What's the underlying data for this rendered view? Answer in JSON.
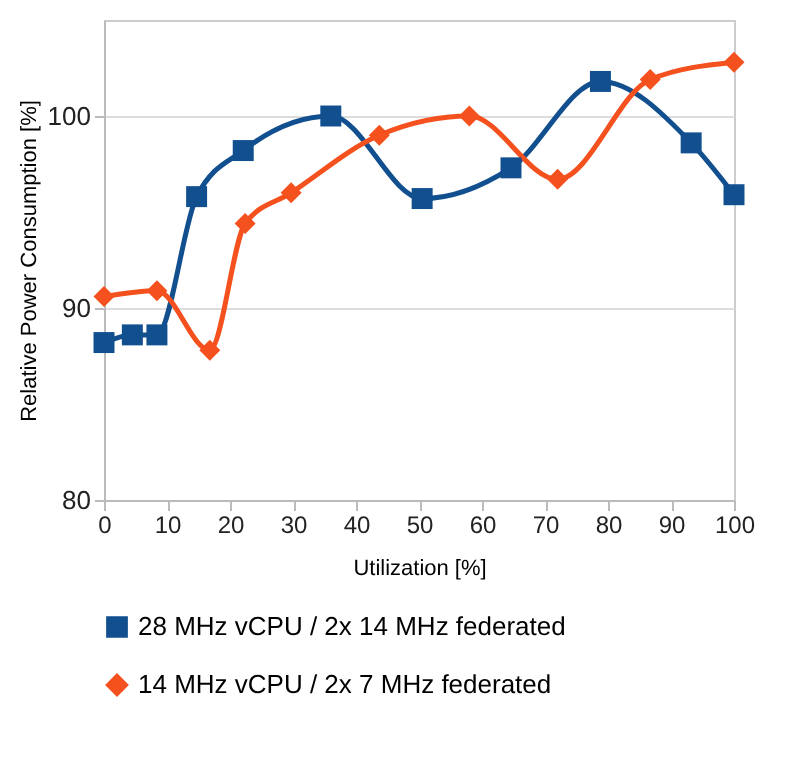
{
  "chart_data": {
    "type": "line",
    "xlabel": "Utilization [%]",
    "ylabel": "Relative Power Consumption [%]",
    "xlim": [
      0,
      100
    ],
    "xticks": [
      0,
      10,
      20,
      30,
      40,
      50,
      60,
      70,
      80,
      90,
      100
    ],
    "ylim": [
      80,
      105
    ],
    "yticks": [
      80,
      90,
      100
    ],
    "grid": "y",
    "legend": "bottom",
    "line_style": "solid",
    "series": [
      {
        "name": "28 MHz vCPU / 2x 14 MHz federated",
        "color": "#114f8f",
        "marker": "square",
        "x": [
          0,
          4.5,
          8.4,
          14.7,
          22.1,
          36,
          50.5,
          64.6,
          78.8,
          93.2,
          100
        ],
        "values": [
          88.2,
          88.6,
          88.6,
          95.8,
          98.2,
          100,
          95.7,
          97.3,
          101.8,
          98.6,
          95.9
        ]
      },
      {
        "name": "14 MHz vCPU / 2x 7 MHz federated",
        "color": "#f4511e",
        "marker": "diamond",
        "x": [
          0,
          8.4,
          16.8,
          22.4,
          29.7,
          43.7,
          58,
          72,
          86.7,
          100
        ],
        "values": [
          90.6,
          90.9,
          87.8,
          94.4,
          96.0,
          99.0,
          100,
          96.7,
          101.9,
          102.8
        ]
      }
    ]
  }
}
